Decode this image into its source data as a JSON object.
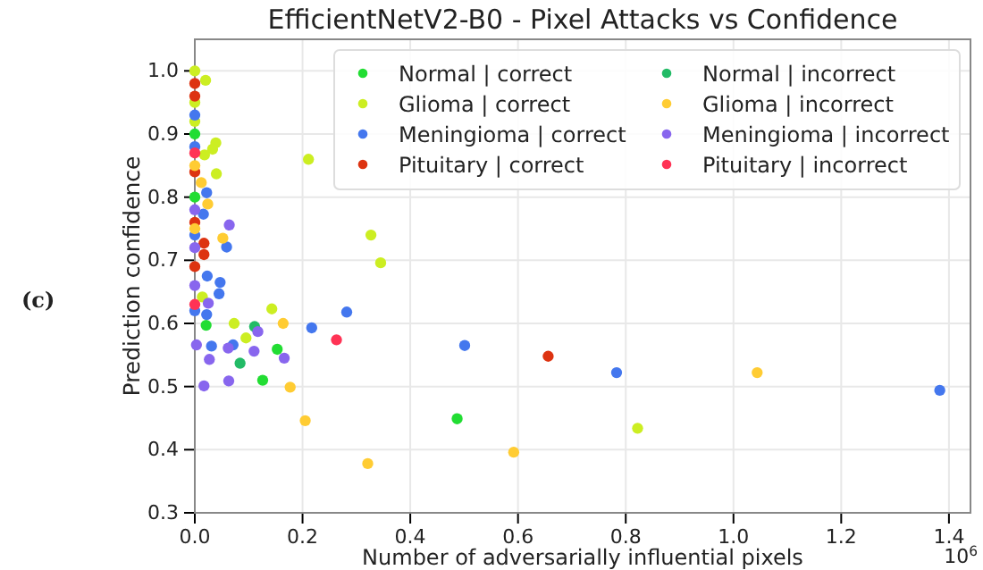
{
  "chart_data": {
    "type": "scatter",
    "title": "EfficientNetV2-B0 - Pixel Attacks vs Confidence",
    "xlabel": "Number of adversarially influential pixels",
    "ylabel": "Prediction confidence",
    "annotations": [
      "(c)",
      "10$^{6}$"
    ],
    "xlim": [
      0,
      1.44
    ],
    "ylim": [
      0.3,
      1.05
    ],
    "xticks": [
      {
        "value": 0,
        "label": "0.0"
      },
      0.2,
      0.4,
      0.6,
      0.8,
      {
        "value": 1,
        "label": "1.0"
      },
      1.2,
      1.4
    ],
    "yticks": [
      0.3,
      0.4,
      0.5,
      0.6,
      0.7,
      0.8,
      0.9,
      {
        "value": 1,
        "label": "1.0"
      }
    ],
    "grid": true,
    "legend": "top right",
    "marker": "circle",
    "series": [
      {
        "name": "Normal | correct",
        "color": "#22dd33",
        "x": [
          0.487,
          0.153,
          0.126,
          0.021,
          0,
          0
        ],
        "values": [
          0.449,
          0.559,
          0.51,
          0.597,
          0.9,
          0.8
        ]
      },
      {
        "name": "Glioma | correct",
        "color": "#ccee22",
        "x": [
          0.02,
          0.039,
          0.033,
          0.018,
          0.04,
          0.211,
          0.327,
          0.345,
          0.143,
          0.073,
          0.095,
          0.014,
          0.822,
          0,
          0,
          0
        ],
        "values": [
          0.985,
          0.886,
          0.876,
          0.867,
          0.837,
          0.86,
          0.74,
          0.696,
          0.623,
          0.6,
          0.577,
          0.642,
          0.434,
          1.0,
          0.95,
          0.92
        ]
      },
      {
        "name": "Meningioma | correct",
        "color": "#4477ee",
        "x": [
          0.217,
          0.501,
          0.783,
          1.383,
          0.282,
          0.071,
          0.031,
          0.047,
          0.045,
          0.023,
          0.059,
          0.022,
          0.016,
          0.022,
          0,
          0,
          0,
          0
        ],
        "values": [
          0.593,
          0.565,
          0.522,
          0.494,
          0.618,
          0.566,
          0.564,
          0.665,
          0.647,
          0.675,
          0.721,
          0.807,
          0.773,
          0.614,
          0.93,
          0.88,
          0.74,
          0.62
        ]
      },
      {
        "name": "Pituitary | correct",
        "color": "#dd3311",
        "x": [
          0.656,
          0.017,
          0.017,
          0,
          0,
          0,
          0,
          0
        ],
        "values": [
          0.548,
          0.727,
          0.709,
          0.98,
          0.96,
          0.84,
          0.76,
          0.69
        ]
      },
      {
        "name": "Normal | incorrect",
        "color": "#22bb66",
        "x": [
          0.084,
          0.111
        ],
        "values": [
          0.537,
          0.595
        ]
      },
      {
        "name": "Glioma | incorrect",
        "color": "#ffcc33",
        "x": [
          0.024,
          0.052,
          0.164,
          0.177,
          0.205,
          0.321,
          0.592,
          1.044,
          0.012,
          0,
          0
        ],
        "values": [
          0.789,
          0.735,
          0.6,
          0.499,
          0.446,
          0.378,
          0.396,
          0.522,
          0.823,
          0.85,
          0.75
        ]
      },
      {
        "name": "Meningioma | incorrect",
        "color": "#8866ee",
        "x": [
          0.064,
          0.025,
          0.027,
          0.062,
          0.063,
          0.017,
          0.11,
          0.117,
          0.166,
          0.003,
          0,
          0,
          0
        ],
        "values": [
          0.756,
          0.632,
          0.543,
          0.561,
          0.509,
          0.501,
          0.556,
          0.587,
          0.545,
          0.566,
          0.78,
          0.66,
          0.72
        ]
      },
      {
        "name": "Pituitary | incorrect",
        "color": "#ff3355",
        "x": [
          0.263,
          0,
          0
        ],
        "values": [
          0.574,
          0.63,
          0.87
        ]
      }
    ]
  }
}
